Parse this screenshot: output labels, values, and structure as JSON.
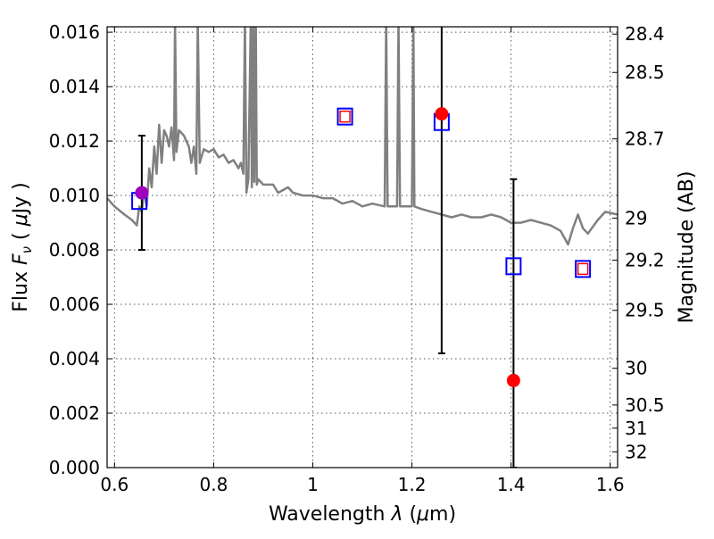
{
  "chart_data": {
    "type": "scatter",
    "xlabel": "Wavelength  λ (μm)",
    "ylabel": "Flux  F_ν  ( μJy )",
    "ylabel_parts": {
      "prefix": "Flux ",
      "var": "F",
      "sub": "ν",
      "open": "  ( ",
      "mu": "μ",
      "unit": "Jy )"
    },
    "xlabel_parts": {
      "prefix": "Wavelength  ",
      "var": "λ",
      "open": " (",
      "mu": "μ",
      "unit": "m)"
    },
    "y2label": "Magnitude (AB)",
    "xlim": [
      0.585,
      1.615
    ],
    "ylim": [
      0.0,
      0.0162
    ],
    "grid": true,
    "x_ticks": [
      0.6,
      0.8,
      1.0,
      1.2,
      1.4,
      1.6
    ],
    "x_tick_labels": [
      "0.6",
      "0.8",
      "1",
      "1.2",
      "1.4",
      "1.6"
    ],
    "y_ticks": [
      0.0,
      0.002,
      0.004,
      0.006,
      0.008,
      0.01,
      0.012,
      0.014,
      0.016
    ],
    "y_tick_labels": [
      "0.000",
      "0.002",
      "0.004",
      "0.006",
      "0.008",
      "0.010",
      "0.012",
      "0.014",
      "0.016"
    ],
    "y2_ticks": [
      {
        "label": "28.4",
        "flux": 0.01593
      },
      {
        "label": "28.5",
        "flux": 0.01452
      },
      {
        "label": "28.7",
        "flux": 0.01208
      },
      {
        "label": "29",
        "flux": 0.00917
      },
      {
        "label": "29.2",
        "flux": 0.00762
      },
      {
        "label": "29.5",
        "flux": 0.00578
      },
      {
        "label": "30",
        "flux": 0.00365
      },
      {
        "label": "30.5",
        "flux": 0.0023
      },
      {
        "label": "31",
        "flux": 0.00145
      },
      {
        "label": "32",
        "flux": 0.00058
      }
    ],
    "model_spectrum": {
      "color": "#808080",
      "points": [
        [
          0.585,
          0.0099
        ],
        [
          0.6,
          0.0096
        ],
        [
          0.62,
          0.0093
        ],
        [
          0.635,
          0.0091
        ],
        [
          0.645,
          0.0089
        ],
        [
          0.65,
          0.0096
        ],
        [
          0.655,
          0.0094
        ],
        [
          0.66,
          0.0102
        ],
        [
          0.665,
          0.0096
        ],
        [
          0.67,
          0.011
        ],
        [
          0.675,
          0.0103
        ],
        [
          0.68,
          0.0118
        ],
        [
          0.685,
          0.0108
        ],
        [
          0.69,
          0.0126
        ],
        [
          0.695,
          0.0112
        ],
        [
          0.7,
          0.0124
        ],
        [
          0.705,
          0.0122
        ],
        [
          0.71,
          0.0118
        ],
        [
          0.715,
          0.0125
        ],
        [
          0.72,
          0.0113
        ],
        [
          0.722,
          0.0165
        ],
        [
          0.725,
          0.0116
        ],
        [
          0.73,
          0.0124
        ],
        [
          0.74,
          0.0122
        ],
        [
          0.75,
          0.0118
        ],
        [
          0.755,
          0.0112
        ],
        [
          0.76,
          0.0118
        ],
        [
          0.765,
          0.0108
        ],
        [
          0.768,
          0.0165
        ],
        [
          0.772,
          0.0112
        ],
        [
          0.78,
          0.0117
        ],
        [
          0.79,
          0.0116
        ],
        [
          0.8,
          0.0117
        ],
        [
          0.81,
          0.0114
        ],
        [
          0.82,
          0.0115
        ],
        [
          0.83,
          0.0112
        ],
        [
          0.84,
          0.0113
        ],
        [
          0.85,
          0.011
        ],
        [
          0.855,
          0.0112
        ],
        [
          0.86,
          0.0108
        ],
        [
          0.863,
          0.0165
        ],
        [
          0.866,
          0.0101
        ],
        [
          0.87,
          0.0106
        ],
        [
          0.875,
          0.0165
        ],
        [
          0.877,
          0.0103
        ],
        [
          0.88,
          0.0165
        ],
        [
          0.882,
          0.0105
        ],
        [
          0.885,
          0.0165
        ],
        [
          0.887,
          0.0104
        ],
        [
          0.89,
          0.0106
        ],
        [
          0.9,
          0.0104
        ],
        [
          0.92,
          0.0104
        ],
        [
          0.93,
          0.0101
        ],
        [
          0.94,
          0.0102
        ],
        [
          0.95,
          0.0103
        ],
        [
          0.96,
          0.0101
        ],
        [
          0.98,
          0.01
        ],
        [
          1.0,
          0.01
        ],
        [
          1.02,
          0.0099
        ],
        [
          1.04,
          0.0099
        ],
        [
          1.06,
          0.0097
        ],
        [
          1.08,
          0.0098
        ],
        [
          1.1,
          0.0096
        ],
        [
          1.12,
          0.0097
        ],
        [
          1.145,
          0.0096
        ],
        [
          1.148,
          0.0165
        ],
        [
          1.151,
          0.0096
        ],
        [
          1.17,
          0.0096
        ],
        [
          1.173,
          0.0165
        ],
        [
          1.176,
          0.0096
        ],
        [
          1.2,
          0.0096
        ],
        [
          1.203,
          0.0165
        ],
        [
          1.205,
          0.0096
        ],
        [
          1.22,
          0.0095
        ],
        [
          1.24,
          0.0094
        ],
        [
          1.26,
          0.0093
        ],
        [
          1.28,
          0.0092
        ],
        [
          1.3,
          0.0093
        ],
        [
          1.32,
          0.0092
        ],
        [
          1.34,
          0.0092
        ],
        [
          1.36,
          0.0093
        ],
        [
          1.38,
          0.0092
        ],
        [
          1.4,
          0.009
        ],
        [
          1.42,
          0.009
        ],
        [
          1.44,
          0.0091
        ],
        [
          1.46,
          0.009
        ],
        [
          1.48,
          0.0089
        ],
        [
          1.5,
          0.0087
        ],
        [
          1.515,
          0.0082
        ],
        [
          1.525,
          0.0088
        ],
        [
          1.535,
          0.0093
        ],
        [
          1.545,
          0.0088
        ],
        [
          1.555,
          0.0086
        ],
        [
          1.575,
          0.0091
        ],
        [
          1.59,
          0.0094
        ],
        [
          1.615,
          0.0093
        ]
      ]
    },
    "model_photometry_blue": [
      {
        "x": 0.65,
        "y": 0.0098
      },
      {
        "x": 1.065,
        "y": 0.0129
      },
      {
        "x": 1.26,
        "y": 0.0127
      },
      {
        "x": 1.405,
        "y": 0.0074
      },
      {
        "x": 1.545,
        "y": 0.0073
      }
    ],
    "model_photometry_red": [
      {
        "x": 1.065,
        "y": 0.0129
      },
      {
        "x": 1.545,
        "y": 0.0073
      }
    ],
    "observed": [
      {
        "x": 0.655,
        "y": 0.0101,
        "err_lo": 0.008,
        "err_hi": 0.0122,
        "color": "#a000c0"
      },
      {
        "x": 1.26,
        "y": 0.013,
        "err_lo": 0.0042,
        "err_hi": 0.0165,
        "color": "#ff0000"
      },
      {
        "x": 1.405,
        "y": 0.0032,
        "err_lo": 0.0,
        "err_hi": 0.0106,
        "color": "#ff0000"
      }
    ],
    "colors": {
      "blue_marker": "#0000ff",
      "red_marker": "#ff0000",
      "grid": "#555555",
      "error_bar": "#000000"
    }
  }
}
